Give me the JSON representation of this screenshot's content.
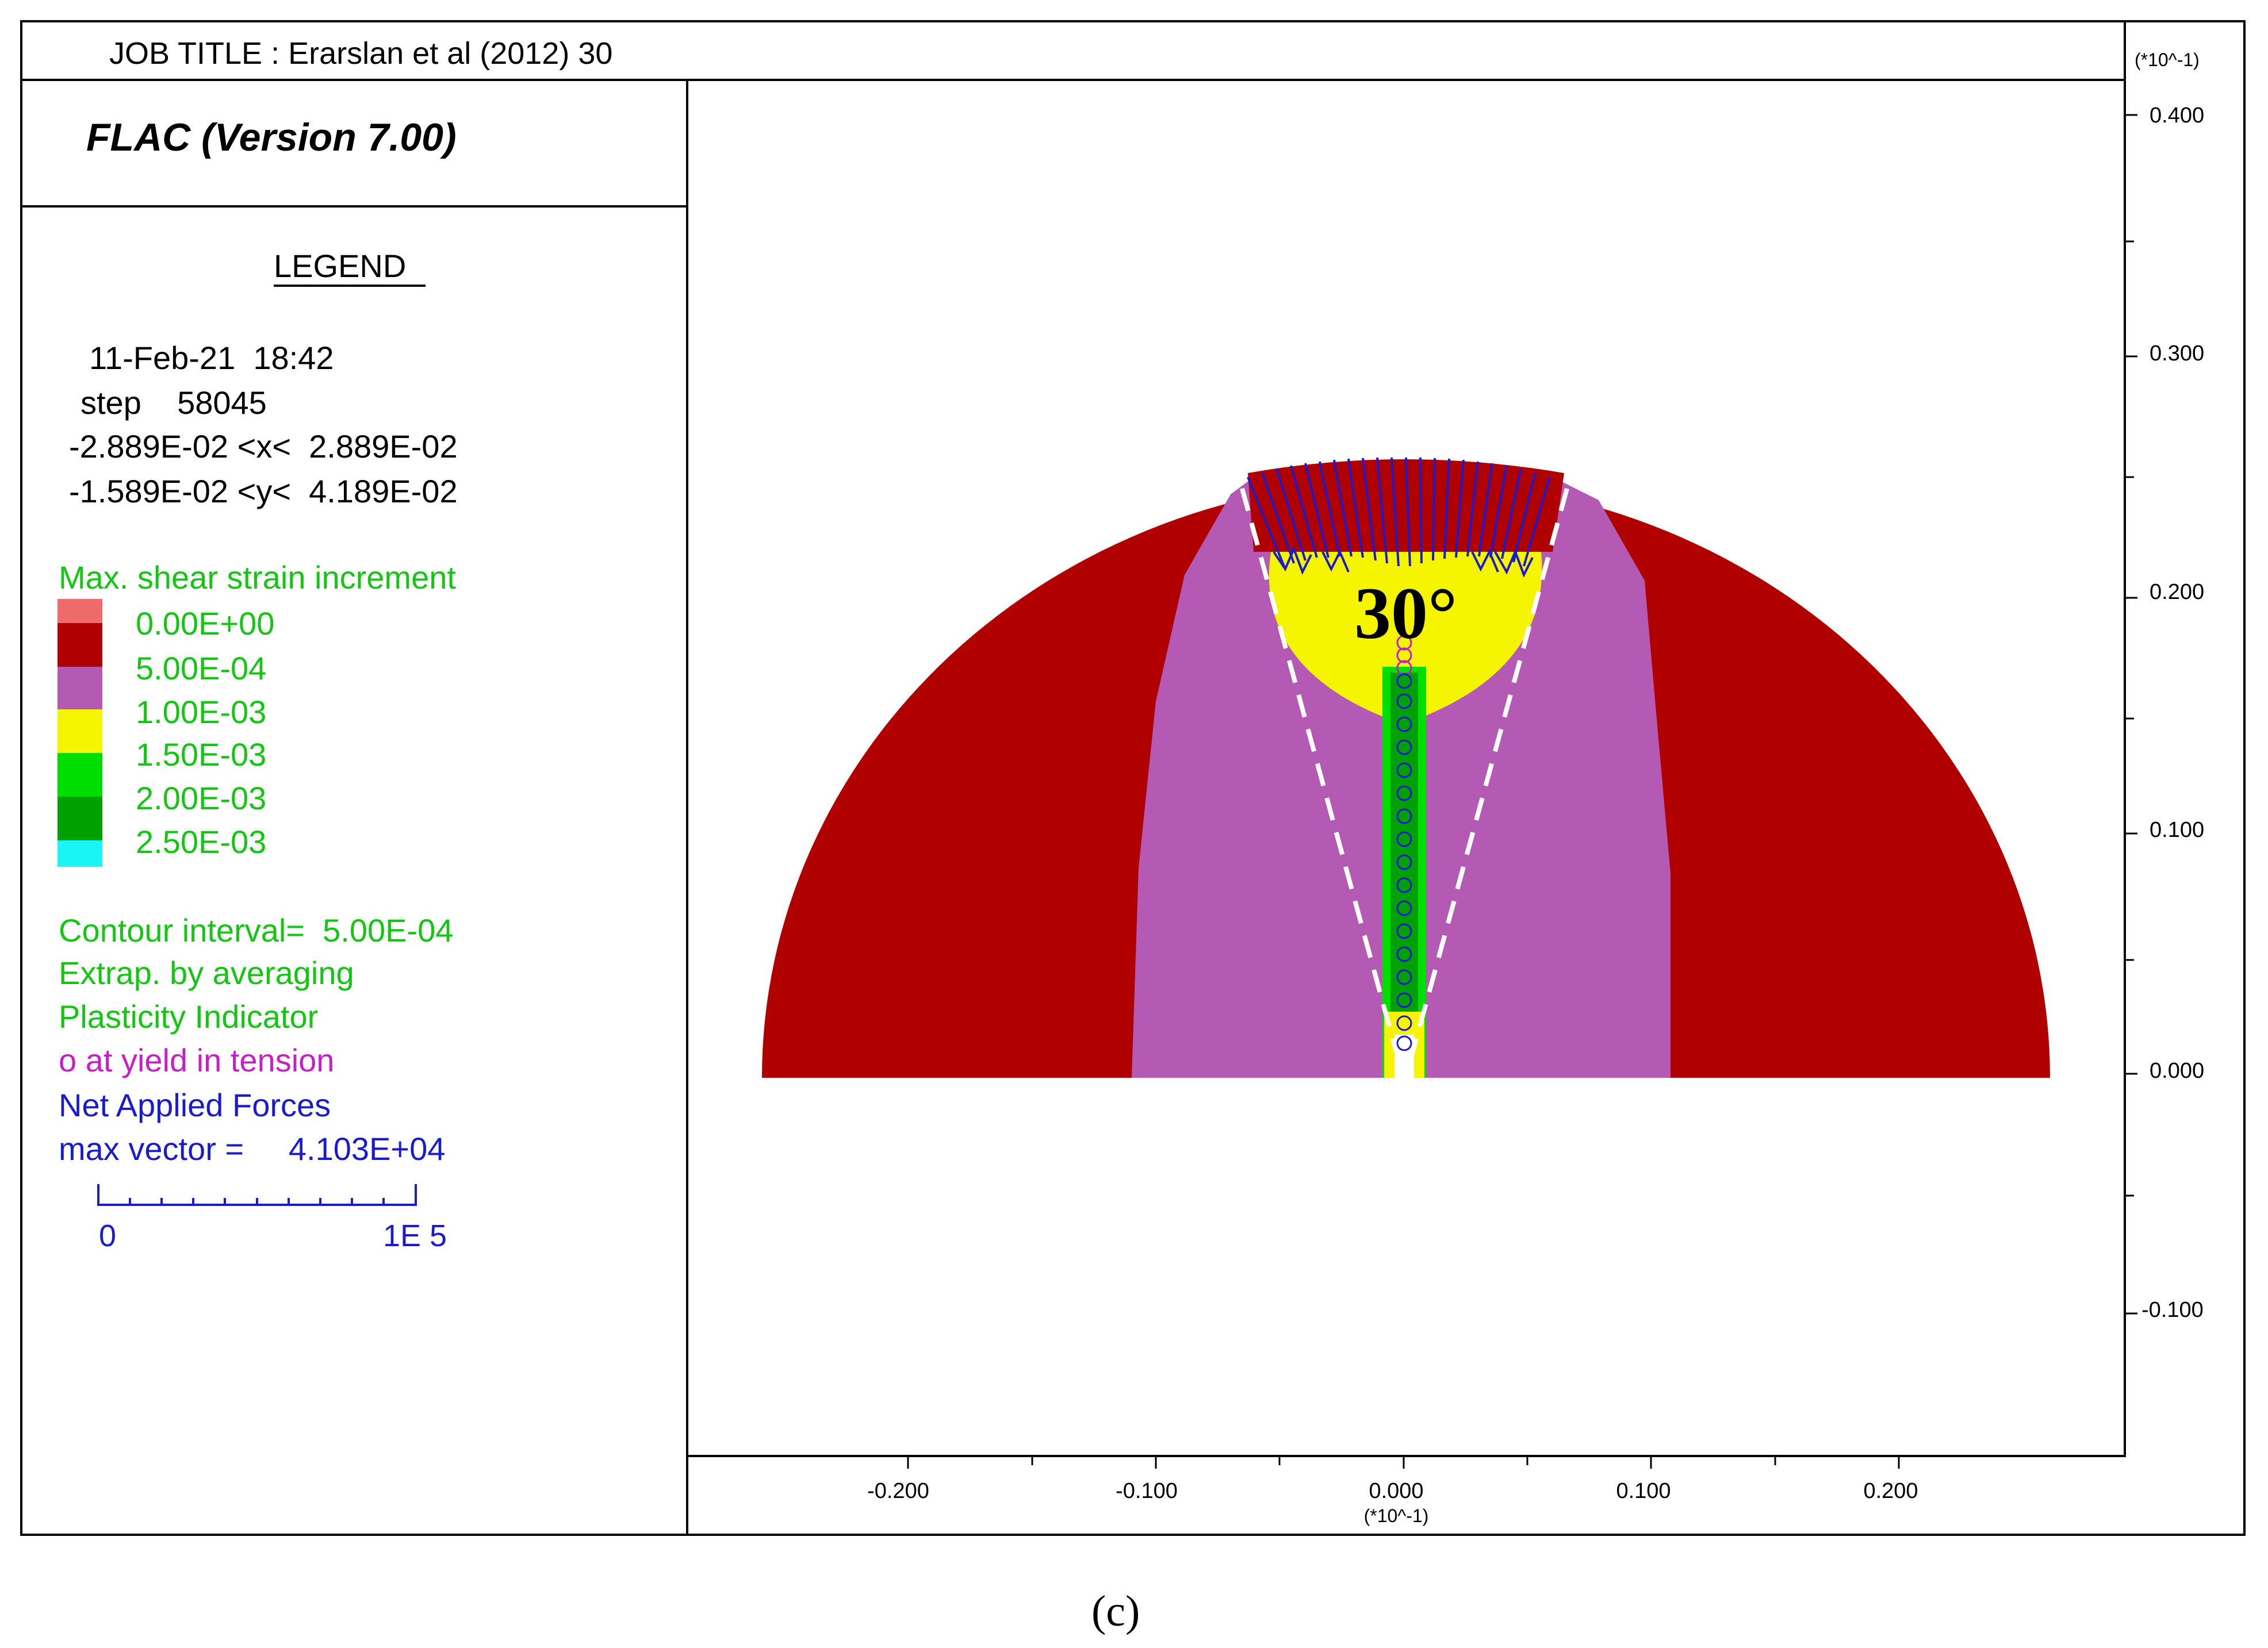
{
  "header": {
    "job_title": "JOB TITLE : Erarslan et al (2012) 30"
  },
  "program": {
    "name": "FLAC (Version 7.00)"
  },
  "legend": {
    "title": "LEGEND",
    "date": "11-Feb-21  18:42",
    "step": "step    58045",
    "x_range": "-2.889E-02 <x<  2.889E-02",
    "y_range": "-1.589E-02 <y<  4.189E-02",
    "contour_title": "Max. shear strain increment",
    "levels": [
      {
        "label": "0.00E+00",
        "color": "#ee6b6b"
      },
      {
        "label": "5.00E-04",
        "color": "#b10000"
      },
      {
        "label": "1.00E-03",
        "color": "#b45ab4"
      },
      {
        "label": "1.50E-03",
        "color": "#f5f500"
      },
      {
        "label": "2.00E-03",
        "color": "#00dd00"
      },
      {
        "label": "2.50E-03",
        "color": "#00a000"
      },
      {
        "label": "",
        "color": "#19f5f5"
      }
    ],
    "contour_interval": "Contour interval=  5.00E-04",
    "extrap": "Extrap. by averaging",
    "plasticity": "Plasticity Indicator",
    "yield_tension": "o at yield in tension",
    "net_forces": "Net Applied Forces",
    "max_vector": "max vector =     4.103E+04",
    "scale_min": "0",
    "scale_max": "1E  5"
  },
  "plot": {
    "angle_label": "30°",
    "x_axis": {
      "ticks": [
        "-0.200",
        "-0.100",
        "0.000",
        "0.100",
        "0.200"
      ],
      "multiplier": "(*10^-1)"
    },
    "y_axis": {
      "ticks": [
        "0.400",
        "0.300",
        "0.200",
        "0.100",
        "0.000",
        "-0.100"
      ],
      "multiplier": "(*10^-1)"
    }
  },
  "caption": "(c)"
}
